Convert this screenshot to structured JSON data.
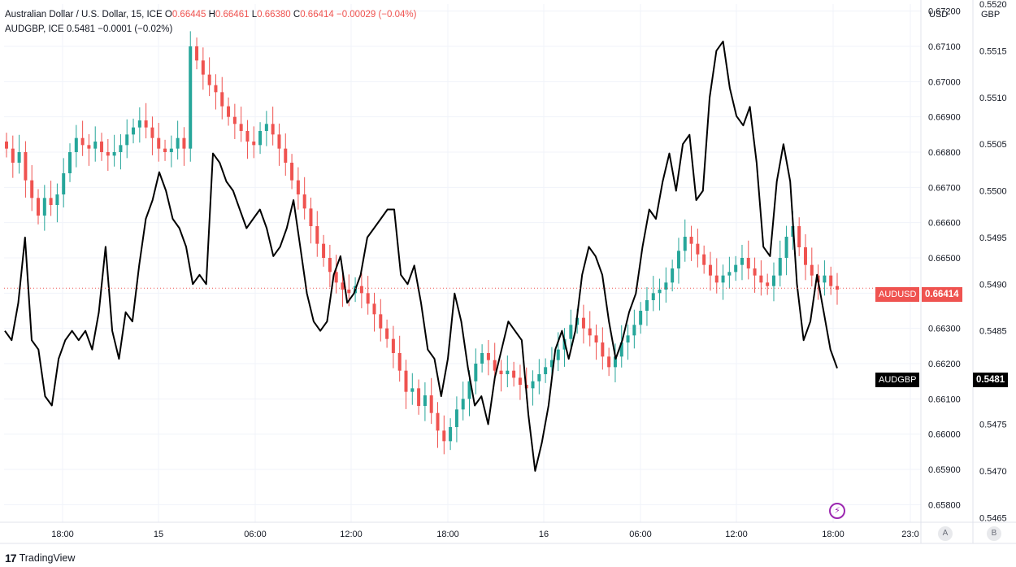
{
  "legend": {
    "main_name": "Australian Dollar / U.S. Dollar, 15, ICE",
    "o_label": "O",
    "o_value": "0.66445",
    "h_label": "H",
    "h_value": "0.66461",
    "l_label": "L",
    "l_value": "0.66380",
    "c_label": "C",
    "c_value": "0.66414",
    "change": "−0.00029 (−0.04%)",
    "compare_name": "AUDGBP, ICE",
    "compare_value": "0.5481",
    "compare_change": "−0.0001 (−0.02%)"
  },
  "scales": {
    "left_head": "USD",
    "right_head": "GBP"
  },
  "badges": {
    "audusd_label": "AUDUSD",
    "audusd_value": "0.66414",
    "audgbp_label": "AUDGBP",
    "audgbp_value": "0.5481"
  },
  "buttons": {
    "a": "A",
    "b": "B"
  },
  "footer": {
    "brand": "TradingView",
    "brand_mark": "17"
  },
  "colors": {
    "up": "#26a69a",
    "down": "#ef5350",
    "line": "#000000",
    "grid": "#f0f3fa",
    "label_bg_usd": "#ef5350",
    "label_bg_gbp": "#000000"
  },
  "chart_data": {
    "type": "line",
    "title": "Australian Dollar / U.S. Dollar, 15, ICE",
    "x_ticks": [
      "18:00",
      "15",
      "06:00",
      "12:00",
      "18:00",
      "16",
      "06:00",
      "12:00",
      "18:00",
      "23:0"
    ],
    "usd_axis": {
      "label": "USD",
      "ylim": [
        0.6575,
        0.6722
      ],
      "ticks": [
        "0.67200",
        "0.67100",
        "0.67000",
        "0.66900",
        "0.66800",
        "0.66700",
        "0.66600",
        "0.66500",
        "0.66400",
        "0.66300",
        "0.66200",
        "0.66100",
        "0.66000",
        "0.65900",
        "0.65800"
      ]
    },
    "gbp_axis": {
      "label": "GBP",
      "ylim": [
        0.54645,
        0.552
      ],
      "ticks": [
        "0.5520",
        "0.5515",
        "0.5510",
        "0.5505",
        "0.5500",
        "0.5495",
        "0.5490",
        "0.5485",
        "0.5480",
        "0.5475",
        "0.5470",
        "0.5465"
      ]
    },
    "series": [
      {
        "name": "AUDUSD",
        "kind": "candles-approx-close",
        "values": [
          0.6681,
          0.6677,
          0.668,
          0.6672,
          0.6667,
          0.6662,
          0.6667,
          0.6665,
          0.6668,
          0.6674,
          0.668,
          0.6684,
          0.6682,
          0.6681,
          0.6683,
          0.668,
          0.6679,
          0.668,
          0.6682,
          0.6685,
          0.6687,
          0.6689,
          0.6687,
          0.6684,
          0.6681,
          0.668,
          0.6681,
          0.6684,
          0.6681,
          0.671,
          0.6706,
          0.6702,
          0.6699,
          0.6697,
          0.6693,
          0.669,
          0.6688,
          0.6686,
          0.6683,
          0.6682,
          0.6686,
          0.6688,
          0.6685,
          0.6681,
          0.6677,
          0.6672,
          0.6668,
          0.6664,
          0.6659,
          0.6654,
          0.665,
          0.6646,
          0.6643,
          0.6641,
          0.664,
          0.6642,
          0.664,
          0.6637,
          0.6634,
          0.663,
          0.6627,
          0.6623,
          0.6618,
          0.6612,
          0.6613,
          0.6608,
          0.6611,
          0.6606,
          0.6601,
          0.6598,
          0.6602,
          0.6607,
          0.661,
          0.6615,
          0.662,
          0.6623,
          0.6621,
          0.6618,
          0.6617,
          0.6618,
          0.6616,
          0.6614,
          0.6613,
          0.6615,
          0.6617,
          0.6619,
          0.6621,
          0.6624,
          0.6627,
          0.6631,
          0.6633,
          0.663,
          0.6628,
          0.6626,
          0.6622,
          0.6619,
          0.6622,
          0.6626,
          0.6628,
          0.6631,
          0.6635,
          0.6638,
          0.664,
          0.6641,
          0.6643,
          0.6647,
          0.6652,
          0.6656,
          0.6654,
          0.6651,
          0.6648,
          0.6645,
          0.6643,
          0.6645,
          0.6646,
          0.6648,
          0.665,
          0.6647,
          0.6645,
          0.6643,
          0.6642,
          0.6645,
          0.665,
          0.6656,
          0.6659,
          0.6653,
          0.6648,
          0.6645,
          0.6643,
          0.6645,
          0.6642,
          0.6641
        ]
      },
      {
        "name": "AUDGBP",
        "kind": "line",
        "values": [
          0.5485,
          0.5484,
          0.5488,
          0.5495,
          0.5484,
          0.5483,
          0.5478,
          0.5477,
          0.5482,
          0.5484,
          0.5485,
          0.5484,
          0.5485,
          0.5483,
          0.5487,
          0.5494,
          0.5485,
          0.5482,
          0.5487,
          0.5486,
          0.5492,
          0.5497,
          0.5499,
          0.5502,
          0.55,
          0.5497,
          0.5496,
          0.5494,
          0.549,
          0.5491,
          0.549,
          0.5504,
          0.5503,
          0.5501,
          0.55,
          0.5498,
          0.5496,
          0.5497,
          0.5498,
          0.5496,
          0.5493,
          0.5494,
          0.5496,
          0.5499,
          0.5494,
          0.5489,
          0.5486,
          0.5485,
          0.5486,
          0.5491,
          0.5493,
          0.5488,
          0.5489,
          0.5491,
          0.5495,
          0.5496,
          0.5497,
          0.5498,
          0.5498,
          0.5491,
          0.549,
          0.5492,
          0.5488,
          0.5483,
          0.5482,
          0.5478,
          0.5482,
          0.5489,
          0.5486,
          0.5481,
          0.5477,
          0.5478,
          0.5475,
          0.548,
          0.5483,
          0.5486,
          0.5485,
          0.5484,
          0.5476,
          0.547,
          0.5473,
          0.5477,
          0.5483,
          0.5485,
          0.5482,
          0.5485,
          0.5491,
          0.5494,
          0.5493,
          0.5491,
          0.5486,
          0.5482,
          0.5484,
          0.5487,
          0.5489,
          0.5494,
          0.5498,
          0.5497,
          0.5501,
          0.5504,
          0.55,
          0.5505,
          0.5506,
          0.5499,
          0.55,
          0.551,
          0.5515,
          0.5516,
          0.5511,
          0.5508,
          0.5507,
          0.5509,
          0.5503,
          0.5494,
          0.5493,
          0.5501,
          0.5505,
          0.5501,
          0.549,
          0.5484,
          0.5486,
          0.5491,
          0.5487,
          0.5483,
          0.5481
        ]
      }
    ],
    "last_values": {
      "AUDUSD": 0.66414,
      "AUDGBP": 0.5481
    },
    "grid": true
  }
}
